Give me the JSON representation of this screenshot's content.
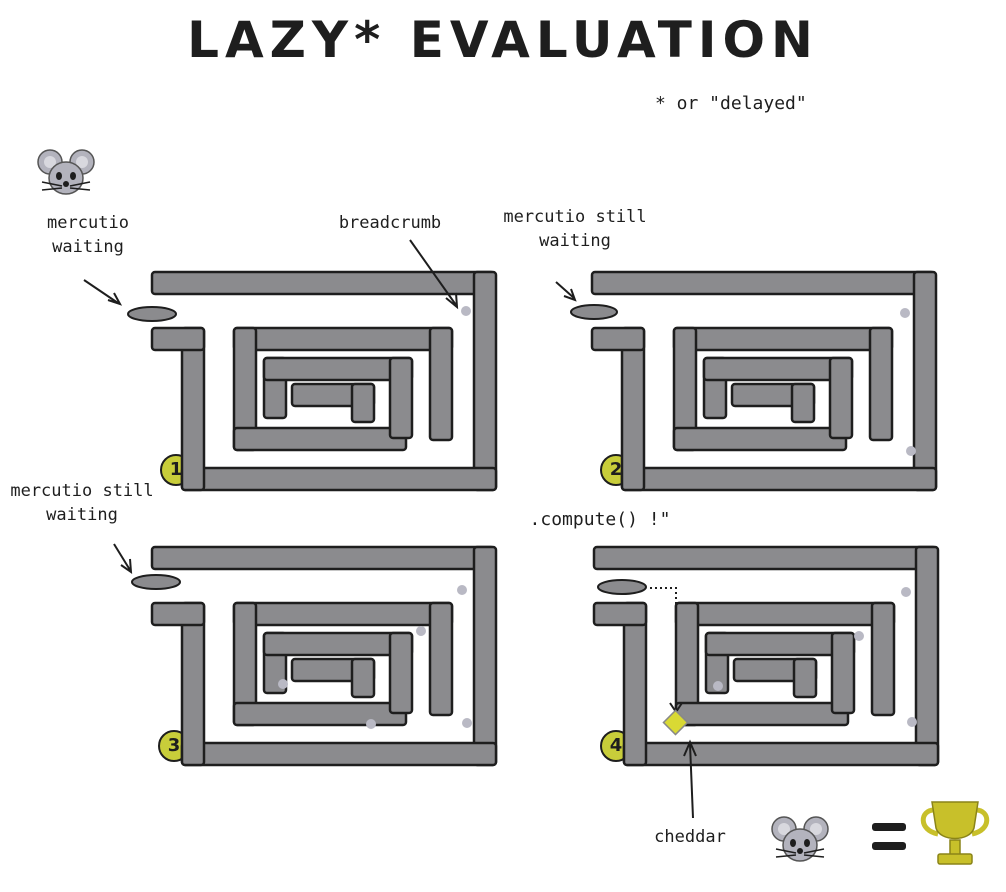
{
  "title": "LAZY* EVALUATION",
  "footnote": "* or \"delayed\"",
  "panels": [
    {
      "number": "1",
      "label_line1": "mercutio",
      "label_line2": "waiting"
    },
    {
      "number": "2",
      "label_line1": "mercutio still",
      "label_line2": "waiting"
    },
    {
      "number": "3",
      "label_line1": "mercutio still",
      "label_line2": "waiting"
    },
    {
      "number": "4",
      "label_line1": ".compute() !\"",
      "label_line2": ""
    }
  ],
  "breadcrumb_label": "breadcrumb",
  "cheddar_label": "cheddar",
  "equals": "=",
  "icons": [
    "mouse-icon",
    "trophy-icon",
    "cheese-icon",
    "breadcrumb-icon"
  ],
  "colors": {
    "maze_wall": "#8b8b8e",
    "outline": "#1e1e1e",
    "crumb": "#b9b9c4",
    "badge": "#c8cd3a",
    "cheese": "#d9d934",
    "trophy": "#c8c02a"
  }
}
